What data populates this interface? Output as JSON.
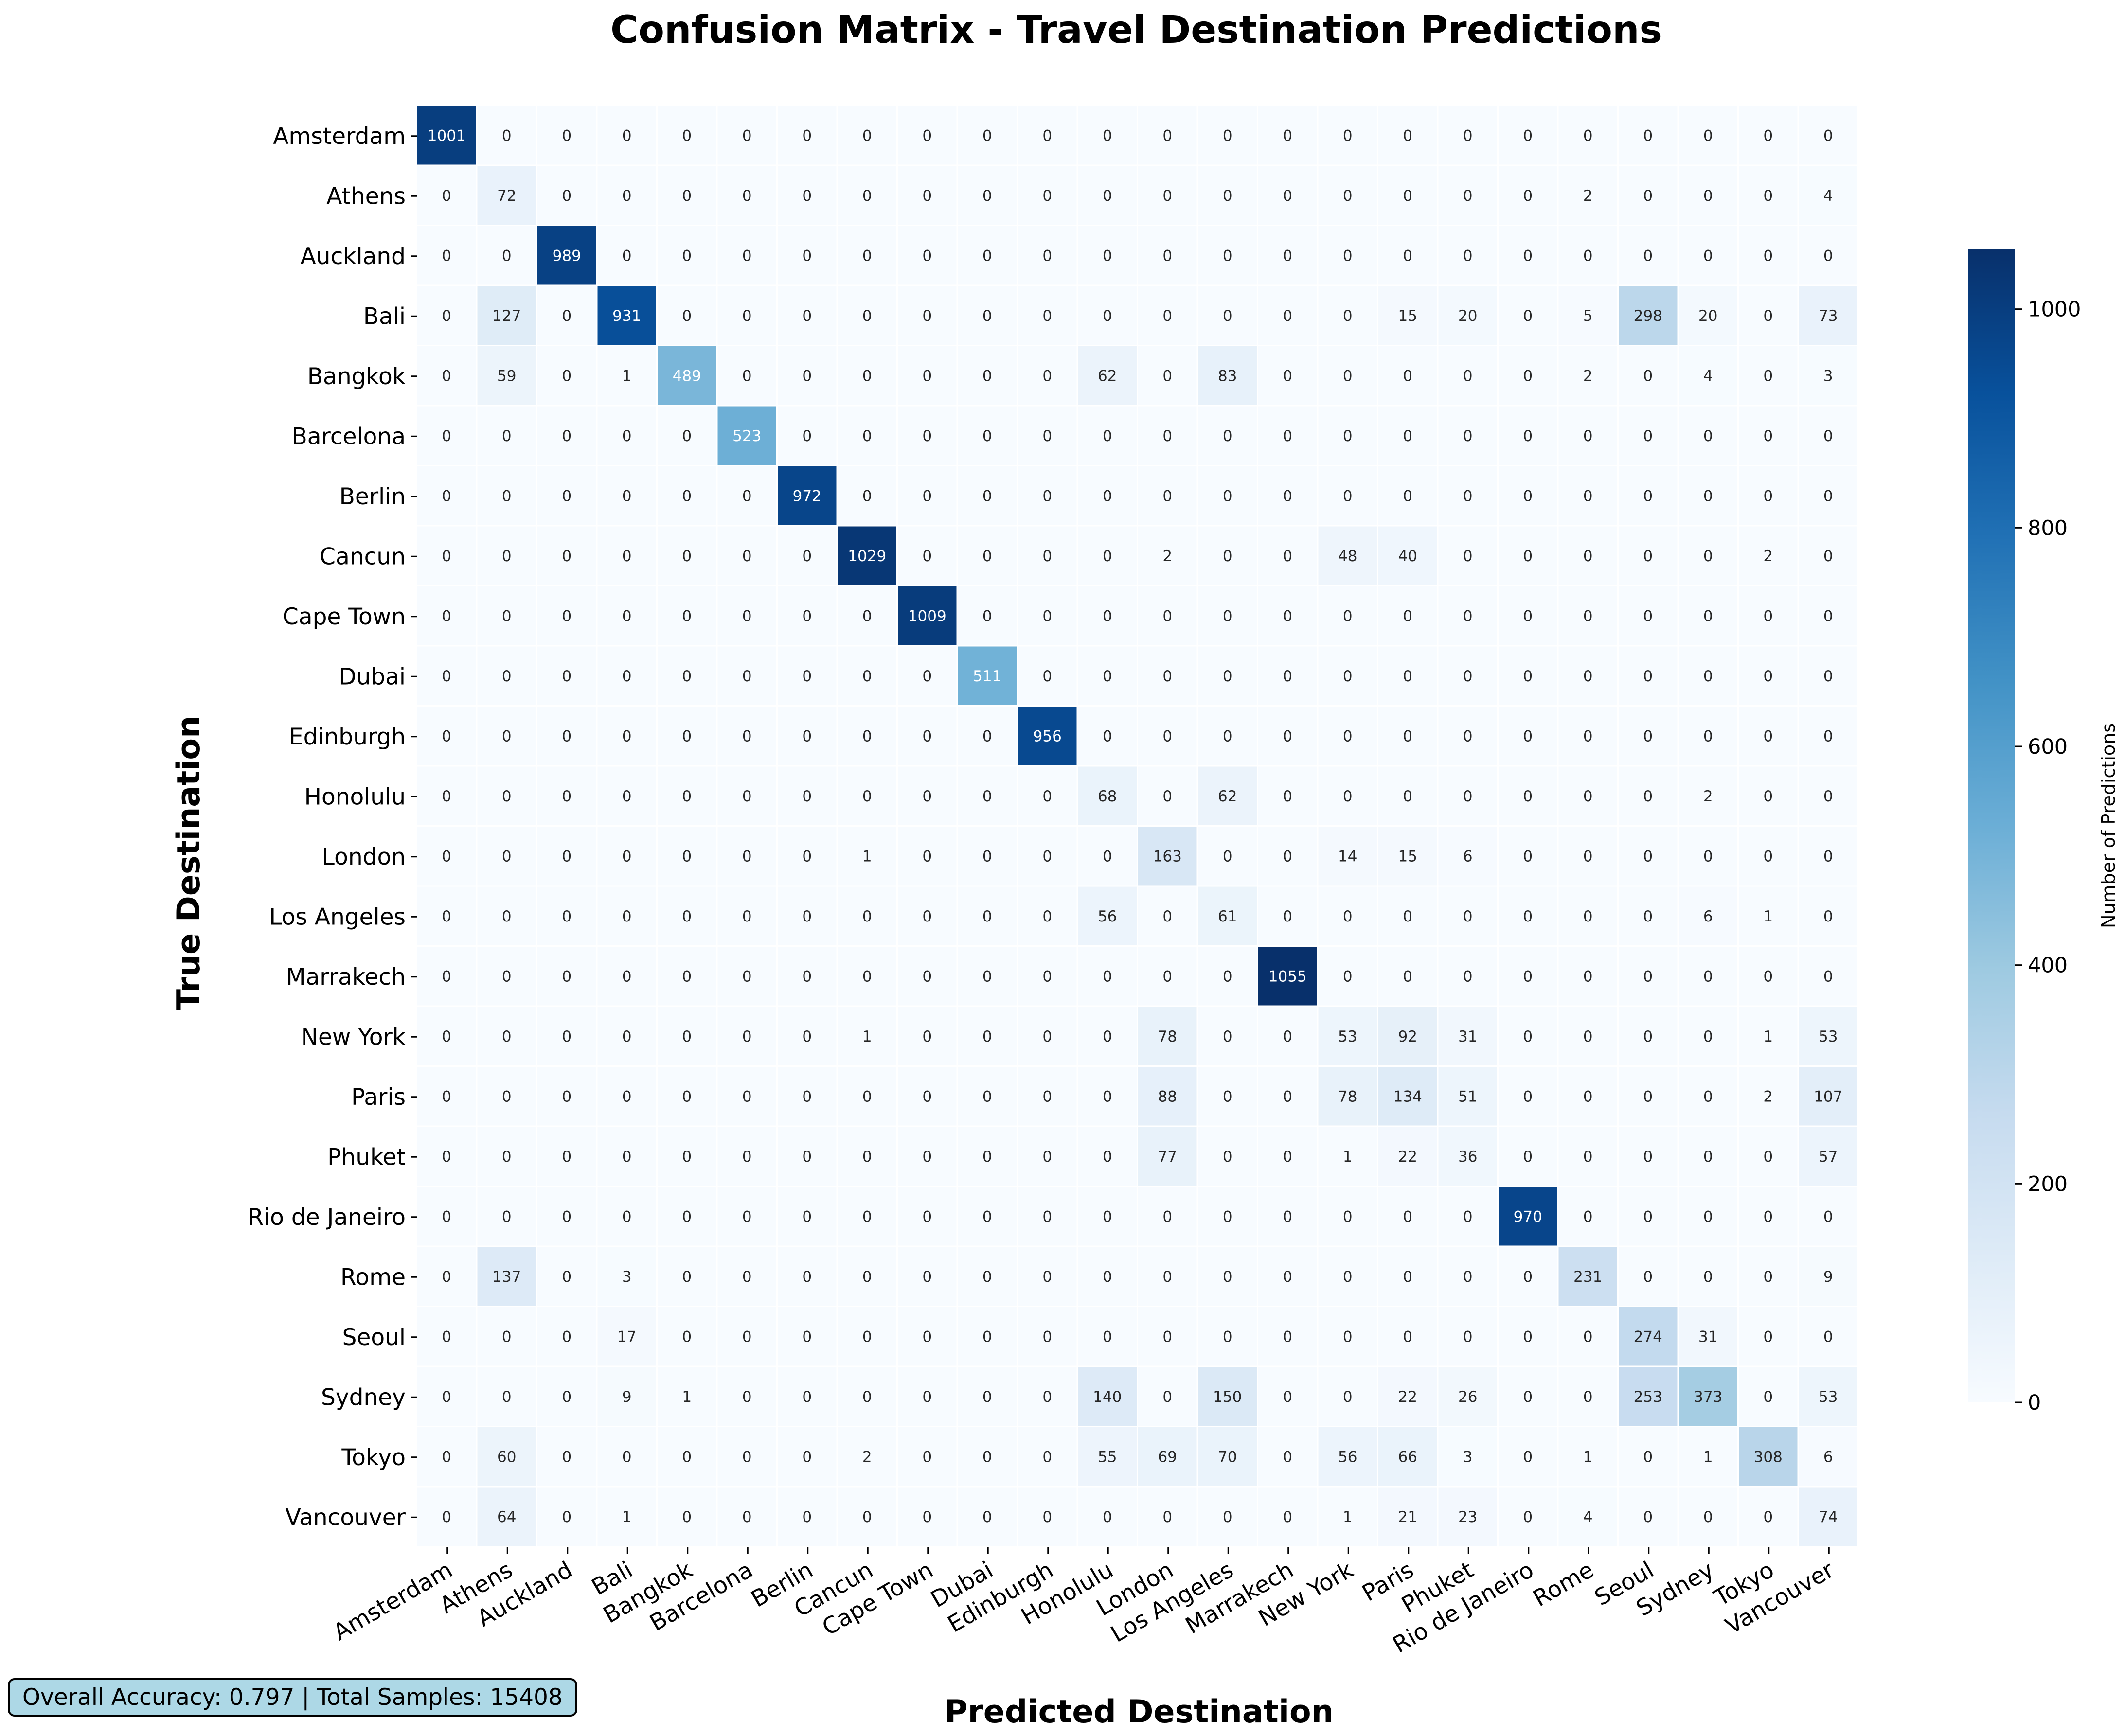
{
  "chart_data": {
    "type": "heatmap",
    "title": "Confusion Matrix - Travel Destination Predictions",
    "xlabel": "Predicted Destination",
    "ylabel": "True Destination",
    "colorbar_label": "Number of Predictions",
    "colorbar_ticks": [
      0,
      200,
      400,
      600,
      800,
      1000
    ],
    "color_range": [
      0,
      1055
    ],
    "colormap": "Blues",
    "categories": [
      "Amsterdam",
      "Athens",
      "Auckland",
      "Bali",
      "Bangkok",
      "Barcelona",
      "Berlin",
      "Cancun",
      "Cape Town",
      "Dubai",
      "Edinburgh",
      "Honolulu",
      "London",
      "Los Angeles",
      "Marrakech",
      "New York",
      "Paris",
      "Phuket",
      "Rio de Janeiro",
      "Rome",
      "Seoul",
      "Sydney",
      "Tokyo",
      "Vancouver"
    ],
    "matrix": [
      [
        1001,
        0,
        0,
        0,
        0,
        0,
        0,
        0,
        0,
        0,
        0,
        0,
        0,
        0,
        0,
        0,
        0,
        0,
        0,
        0,
        0,
        0,
        0,
        0
      ],
      [
        0,
        72,
        0,
        0,
        0,
        0,
        0,
        0,
        0,
        0,
        0,
        0,
        0,
        0,
        0,
        0,
        0,
        0,
        0,
        2,
        0,
        0,
        0,
        4
      ],
      [
        0,
        0,
        989,
        0,
        0,
        0,
        0,
        0,
        0,
        0,
        0,
        0,
        0,
        0,
        0,
        0,
        0,
        0,
        0,
        0,
        0,
        0,
        0,
        0
      ],
      [
        0,
        127,
        0,
        931,
        0,
        0,
        0,
        0,
        0,
        0,
        0,
        0,
        0,
        0,
        0,
        0,
        15,
        20,
        0,
        5,
        298,
        20,
        0,
        73
      ],
      [
        0,
        59,
        0,
        1,
        489,
        0,
        0,
        0,
        0,
        0,
        0,
        62,
        0,
        83,
        0,
        0,
        0,
        0,
        0,
        2,
        0,
        4,
        0,
        3
      ],
      [
        0,
        0,
        0,
        0,
        0,
        523,
        0,
        0,
        0,
        0,
        0,
        0,
        0,
        0,
        0,
        0,
        0,
        0,
        0,
        0,
        0,
        0,
        0,
        0
      ],
      [
        0,
        0,
        0,
        0,
        0,
        0,
        972,
        0,
        0,
        0,
        0,
        0,
        0,
        0,
        0,
        0,
        0,
        0,
        0,
        0,
        0,
        0,
        0,
        0
      ],
      [
        0,
        0,
        0,
        0,
        0,
        0,
        0,
        1029,
        0,
        0,
        0,
        0,
        2,
        0,
        0,
        48,
        40,
        0,
        0,
        0,
        0,
        0,
        2,
        0
      ],
      [
        0,
        0,
        0,
        0,
        0,
        0,
        0,
        0,
        1009,
        0,
        0,
        0,
        0,
        0,
        0,
        0,
        0,
        0,
        0,
        0,
        0,
        0,
        0,
        0
      ],
      [
        0,
        0,
        0,
        0,
        0,
        0,
        0,
        0,
        0,
        511,
        0,
        0,
        0,
        0,
        0,
        0,
        0,
        0,
        0,
        0,
        0,
        0,
        0,
        0
      ],
      [
        0,
        0,
        0,
        0,
        0,
        0,
        0,
        0,
        0,
        0,
        956,
        0,
        0,
        0,
        0,
        0,
        0,
        0,
        0,
        0,
        0,
        0,
        0,
        0
      ],
      [
        0,
        0,
        0,
        0,
        0,
        0,
        0,
        0,
        0,
        0,
        0,
        68,
        0,
        62,
        0,
        0,
        0,
        0,
        0,
        0,
        0,
        2,
        0,
        0
      ],
      [
        0,
        0,
        0,
        0,
        0,
        0,
        0,
        1,
        0,
        0,
        0,
        0,
        163,
        0,
        0,
        14,
        15,
        6,
        0,
        0,
        0,
        0,
        0,
        0
      ],
      [
        0,
        0,
        0,
        0,
        0,
        0,
        0,
        0,
        0,
        0,
        0,
        56,
        0,
        61,
        0,
        0,
        0,
        0,
        0,
        0,
        0,
        6,
        1,
        0
      ],
      [
        0,
        0,
        0,
        0,
        0,
        0,
        0,
        0,
        0,
        0,
        0,
        0,
        0,
        0,
        1055,
        0,
        0,
        0,
        0,
        0,
        0,
        0,
        0,
        0
      ],
      [
        0,
        0,
        0,
        0,
        0,
        0,
        0,
        1,
        0,
        0,
        0,
        0,
        78,
        0,
        0,
        53,
        92,
        31,
        0,
        0,
        0,
        0,
        1,
        53
      ],
      [
        0,
        0,
        0,
        0,
        0,
        0,
        0,
        0,
        0,
        0,
        0,
        0,
        88,
        0,
        0,
        78,
        134,
        51,
        0,
        0,
        0,
        0,
        2,
        107
      ],
      [
        0,
        0,
        0,
        0,
        0,
        0,
        0,
        0,
        0,
        0,
        0,
        0,
        77,
        0,
        0,
        1,
        22,
        36,
        0,
        0,
        0,
        0,
        0,
        57
      ],
      [
        0,
        0,
        0,
        0,
        0,
        0,
        0,
        0,
        0,
        0,
        0,
        0,
        0,
        0,
        0,
        0,
        0,
        0,
        970,
        0,
        0,
        0,
        0,
        0
      ],
      [
        0,
        137,
        0,
        3,
        0,
        0,
        0,
        0,
        0,
        0,
        0,
        0,
        0,
        0,
        0,
        0,
        0,
        0,
        0,
        231,
        0,
        0,
        0,
        9
      ],
      [
        0,
        0,
        0,
        17,
        0,
        0,
        0,
        0,
        0,
        0,
        0,
        0,
        0,
        0,
        0,
        0,
        0,
        0,
        0,
        0,
        274,
        31,
        0,
        0
      ],
      [
        0,
        0,
        0,
        9,
        1,
        0,
        0,
        0,
        0,
        0,
        0,
        140,
        0,
        150,
        0,
        0,
        22,
        26,
        0,
        0,
        253,
        373,
        0,
        53
      ],
      [
        0,
        60,
        0,
        0,
        0,
        0,
        0,
        2,
        0,
        0,
        0,
        55,
        69,
        70,
        0,
        56,
        66,
        3,
        0,
        1,
        0,
        1,
        308,
        6
      ],
      [
        0,
        64,
        0,
        1,
        0,
        0,
        0,
        0,
        0,
        0,
        0,
        0,
        0,
        0,
        0,
        1,
        21,
        23,
        0,
        4,
        0,
        0,
        0,
        74
      ]
    ]
  },
  "footer": {
    "summary": "Overall Accuracy: 0.797 | Total Samples: 15408"
  }
}
